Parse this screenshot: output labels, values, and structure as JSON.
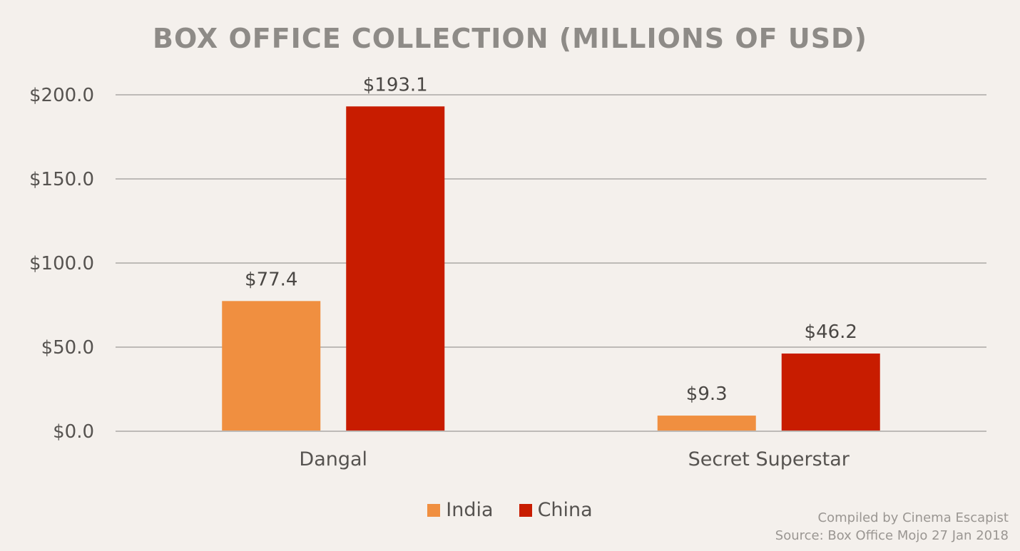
{
  "chart_data": {
    "type": "bar",
    "title": "BOX OFFICE COLLECTION (MILLIONS OF USD)",
    "categories": [
      "Dangal",
      "Secret Superstar"
    ],
    "series": [
      {
        "name": "India",
        "color": "#f08f40",
        "values": [
          77.4,
          9.3
        ],
        "labels": [
          "$77.4",
          "$9.3"
        ]
      },
      {
        "name": "China",
        "color": "#c81c00",
        "values": [
          193.1,
          46.2
        ],
        "labels": [
          "$193.1",
          "$46.2"
        ]
      }
    ],
    "ylim": [
      0,
      200
    ],
    "yticks": [
      0,
      50,
      100,
      150,
      200
    ],
    "ytick_labels": [
      "$0.0",
      "$50.0",
      "$100.0",
      "$150.0",
      "$200.0"
    ],
    "xlabel": "",
    "ylabel": "",
    "grid": true,
    "legend_position": "bottom"
  },
  "credits": {
    "line1": "Compiled by Cinema Escapist",
    "line2": "Source: Box Office Mojo 27 Jan 2018"
  }
}
